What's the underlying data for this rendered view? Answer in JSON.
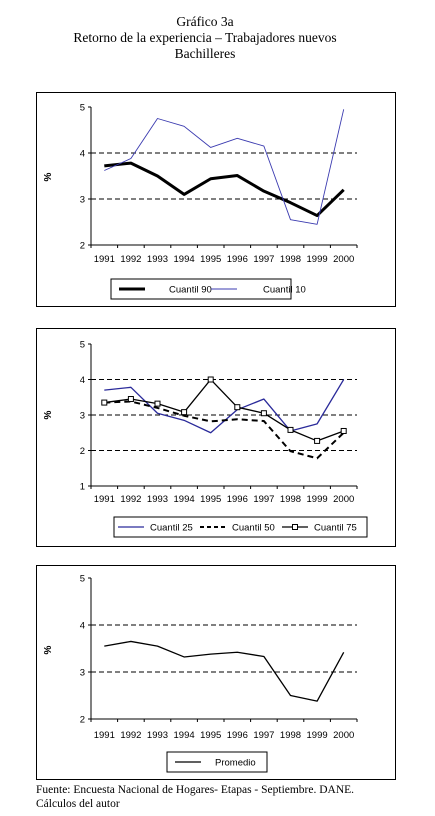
{
  "title": {
    "line1": "Gráfico 3a",
    "line2": "Retorno de la experiencia – Trabajadores nuevos",
    "line3": "Bachilleres"
  },
  "source": {
    "line1": "Fuente: Encuesta Nacional de Hogares-  Etapas - Septiembre. DANE.",
    "line2": "Cálculos del autor"
  },
  "chart_data": [
    {
      "type": "line",
      "categories": [
        "1991",
        "1992",
        "1993",
        "1994",
        "1995",
        "1996",
        "1997",
        "1998",
        "1999",
        "2000"
      ],
      "ylabel": "%",
      "ylim": [
        2,
        5
      ],
      "yticks": [
        "2",
        "3",
        "4",
        "5"
      ],
      "grid": "dashed at 3 and 4",
      "legend_position": "bottom",
      "series": [
        {
          "name": "Cuantil 90",
          "color": "#000000",
          "style": "thick-solid",
          "values": [
            3.72,
            3.78,
            3.5,
            3.1,
            3.44,
            3.51,
            3.17,
            2.92,
            2.64,
            3.2
          ]
        },
        {
          "name": "Cuantil 10",
          "color": "#3b3bb0",
          "style": "thin-solid",
          "values": [
            3.62,
            3.88,
            4.75,
            4.58,
            4.12,
            4.32,
            4.15,
            2.55,
            2.45,
            4.95
          ]
        }
      ]
    },
    {
      "type": "line",
      "categories": [
        "1991",
        "1992",
        "1993",
        "1994",
        "1995",
        "1996",
        "1997",
        "1998",
        "1999",
        "2000"
      ],
      "ylabel": "%",
      "ylim": [
        1,
        5
      ],
      "yticks": [
        "1",
        "2",
        "3",
        "4",
        "5"
      ],
      "grid": "dashed at 2, 3 and 4",
      "legend_position": "bottom",
      "series": [
        {
          "name": "Cuantil 25",
          "color": "#2a2a9a",
          "style": "solid",
          "values": [
            3.7,
            3.78,
            3.05,
            2.85,
            2.5,
            3.15,
            3.45,
            2.55,
            2.75,
            4.0
          ]
        },
        {
          "name": "Cuantil 50",
          "color": "#000000",
          "style": "dashed",
          "values": [
            3.35,
            3.38,
            3.2,
            2.98,
            2.82,
            2.88,
            2.83,
            1.98,
            1.78,
            2.5
          ]
        },
        {
          "name": "Cuantil 75",
          "color": "#000000",
          "style": "solid-square-markers",
          "values": [
            3.35,
            3.45,
            3.32,
            3.08,
            4.0,
            3.22,
            3.05,
            2.58,
            2.27,
            2.55
          ]
        }
      ]
    },
    {
      "type": "line",
      "categories": [
        "1991",
        "1992",
        "1993",
        "1994",
        "1995",
        "1996",
        "1997",
        "1998",
        "1999",
        "2000"
      ],
      "ylabel": "%",
      "ylim": [
        2,
        5
      ],
      "yticks": [
        "2",
        "3",
        "4",
        "5"
      ],
      "grid": "dashed at 3 and 4",
      "legend_position": "bottom",
      "series": [
        {
          "name": "Promedio",
          "color": "#000000",
          "style": "solid",
          "values": [
            3.55,
            3.65,
            3.55,
            3.32,
            3.38,
            3.42,
            3.33,
            2.5,
            2.38,
            3.42
          ]
        }
      ]
    }
  ]
}
